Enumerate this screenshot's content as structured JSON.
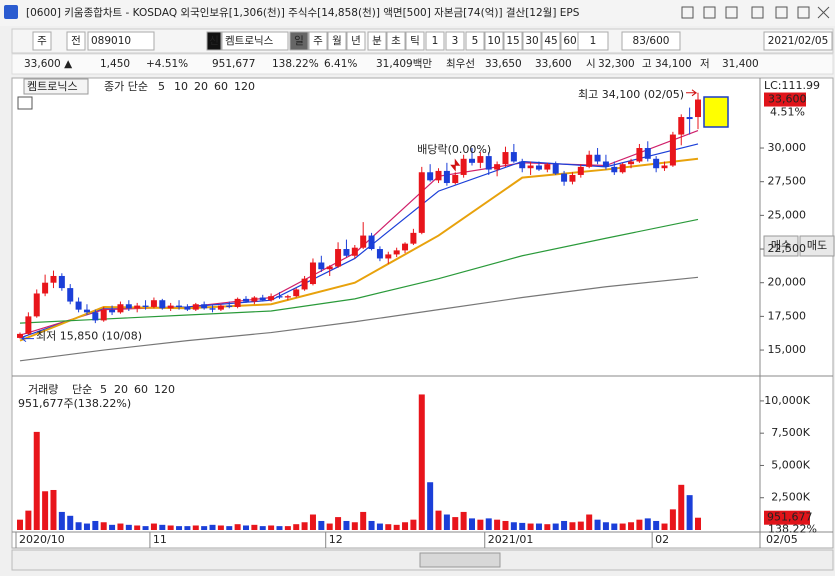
{
  "window": {
    "title": "[0600] 키움종합차트 - KOSDAQ 외국인보유[1,306(천)] 주식수[14,858(천)] 액면[500] 자본금[74(억)] 결산[12월] EPS",
    "toolbar": [
      "주",
      "전",
      "089010",
      "신",
      "켐트로닉스",
      "일",
      "주",
      "월",
      "년",
      "분",
      "초",
      "틱",
      "1",
      "3",
      "5",
      "10",
      "15",
      "30",
      "45",
      "60",
      "1",
      "83/600",
      "2021/02/05"
    ],
    "quote": [
      {
        "text": "33,600 ▲",
        "color": "#e0141a"
      },
      {
        "text": "1,450",
        "color": "#e0141a"
      },
      {
        "text": "+4.51%",
        "color": "#e0141a"
      },
      {
        "text": "951,677",
        "color": "#222222"
      },
      {
        "text": "138.22%",
        "color": "#e0141a"
      },
      {
        "text": "6.41%",
        "color": "#222222"
      },
      {
        "text": "31,409백만",
        "color": "#222222"
      },
      {
        "text": "최우선",
        "color": "#222222"
      },
      {
        "text": "33,650",
        "color": "#e0141a"
      },
      {
        "text": "33,600",
        "color": "#e0141a"
      },
      {
        "text": "시",
        "color": "#222222"
      },
      {
        "text": "32,300",
        "color": "#e0141a"
      },
      {
        "text": "고",
        "color": "#222222"
      },
      {
        "text": "34,100",
        "color": "#e0141a"
      },
      {
        "text": "저",
        "color": "#222222"
      },
      {
        "text": "31,400",
        "color": "#e0141a"
      }
    ],
    "buttons": [
      "매수",
      "매도"
    ]
  },
  "chart_data": [
    {
      "type": "candlestick",
      "title": "켐트로닉스",
      "legend_label": "종가 단순",
      "up_color": "#e8151b",
      "down_color": "#1b3fd8",
      "ohlc": [
        [
          15900,
          16300,
          15850,
          16200
        ],
        [
          16200,
          17800,
          16100,
          17500
        ],
        [
          17500,
          19500,
          17400,
          19200
        ],
        [
          19200,
          20600,
          19000,
          20000
        ],
        [
          20000,
          20900,
          19600,
          20500
        ],
        [
          20500,
          20700,
          19400,
          19600
        ],
        [
          19600,
          19900,
          18400,
          18600
        ],
        [
          18600,
          18900,
          17800,
          18000
        ],
        [
          18000,
          18400,
          17600,
          17800
        ],
        [
          17800,
          18000,
          17000,
          17200
        ],
        [
          17200,
          18200,
          17100,
          18000
        ],
        [
          18000,
          18300,
          17600,
          17800
        ],
        [
          17800,
          18600,
          17700,
          18400
        ],
        [
          18400,
          18700,
          17900,
          18100
        ],
        [
          18100,
          18500,
          17800,
          18300
        ],
        [
          18300,
          18700,
          18000,
          18200
        ],
        [
          18200,
          18900,
          18100,
          18700
        ],
        [
          18700,
          18800,
          18000,
          18100
        ],
        [
          18100,
          18500,
          17900,
          18300
        ],
        [
          18300,
          18700,
          18000,
          18200
        ],
        [
          18200,
          18400,
          17900,
          18000
        ],
        [
          18000,
          18500,
          17900,
          18400
        ],
        [
          18400,
          18600,
          18000,
          18100
        ],
        [
          18100,
          18300,
          17800,
          18000
        ],
        [
          18000,
          18400,
          17900,
          18300
        ],
        [
          18300,
          18600,
          18100,
          18200
        ],
        [
          18200,
          18900,
          18100,
          18800
        ],
        [
          18800,
          19000,
          18500,
          18600
        ],
        [
          18600,
          19000,
          18400,
          18900
        ],
        [
          18900,
          19100,
          18600,
          18700
        ],
        [
          18700,
          19200,
          18600,
          19000
        ],
        [
          19000,
          19300,
          18800,
          18900
        ],
        [
          18900,
          19100,
          18700,
          19000
        ],
        [
          19000,
          19600,
          18900,
          19500
        ],
        [
          19500,
          20500,
          19400,
          20300
        ],
        [
          19900,
          21800,
          19800,
          21500
        ],
        [
          21500,
          22000,
          20800,
          21000
        ],
        [
          21000,
          21300,
          20500,
          21200
        ],
        [
          21200,
          23000,
          21100,
          22500
        ],
        [
          22500,
          23200,
          21900,
          22000
        ],
        [
          22000,
          22800,
          21800,
          22600
        ],
        [
          22600,
          24500,
          22500,
          23500
        ],
        [
          23500,
          23700,
          22400,
          22500
        ],
        [
          22500,
          22700,
          21600,
          21800
        ],
        [
          21800,
          22300,
          21400,
          22100
        ],
        [
          22100,
          22600,
          21900,
          22400
        ],
        [
          22400,
          23000,
          22200,
          22900
        ],
        [
          22900,
          24000,
          22800,
          23700
        ],
        [
          23700,
          28600,
          23600,
          28200
        ],
        [
          28200,
          28800,
          27500,
          27600
        ],
        [
          27600,
          28500,
          27400,
          28300
        ],
        [
          28300,
          28900,
          27200,
          27400
        ],
        [
          27400,
          28200,
          27300,
          28000
        ],
        [
          28000,
          29500,
          27800,
          29200
        ],
        [
          29200,
          30000,
          28700,
          28900
        ],
        [
          28900,
          29700,
          28500,
          29400
        ],
        [
          29400,
          29700,
          28000,
          28400
        ],
        [
          28400,
          29000,
          27900,
          28800
        ],
        [
          28800,
          30100,
          28600,
          29700
        ],
        [
          29700,
          30300,
          28900,
          29000
        ],
        [
          29000,
          29200,
          28200,
          28500
        ],
        [
          28500,
          29000,
          28000,
          28700
        ],
        [
          28700,
          29000,
          28300,
          28400
        ],
        [
          28400,
          28900,
          28200,
          28800
        ],
        [
          28800,
          29000,
          28000,
          28100
        ],
        [
          28100,
          28300,
          27200,
          27500
        ],
        [
          27500,
          28200,
          27300,
          28000
        ],
        [
          28000,
          28800,
          27800,
          28600
        ],
        [
          28600,
          29800,
          28500,
          29500
        ],
        [
          29500,
          30000,
          28800,
          29000
        ],
        [
          29000,
          29500,
          28400,
          28600
        ],
        [
          28600,
          29000,
          28000,
          28200
        ],
        [
          28200,
          28900,
          28100,
          28800
        ],
        [
          28800,
          29200,
          28500,
          29000
        ],
        [
          29000,
          30300,
          28900,
          30000
        ],
        [
          30000,
          30500,
          29000,
          29200
        ],
        [
          29200,
          29400,
          28200,
          28500
        ],
        [
          28500,
          29000,
          28300,
          28700
        ],
        [
          28700,
          31200,
          28600,
          31000
        ],
        [
          31000,
          32500,
          30200,
          32300
        ],
        [
          32300,
          33000,
          31000,
          32150
        ],
        [
          32300,
          34100,
          31400,
          33600
        ]
      ],
      "series": [
        {
          "name": "5",
          "color": "#d0206a",
          "x": [
            0,
            10,
            20,
            30,
            40,
            50,
            60,
            70,
            81
          ],
          "values": [
            16100,
            18000,
            18200,
            18900,
            22200,
            27900,
            28900,
            28700,
            31300
          ]
        },
        {
          "name": "10",
          "color": "#1b3fd8",
          "x": [
            0,
            10,
            20,
            30,
            40,
            50,
            60,
            70,
            81
          ],
          "values": [
            15900,
            18100,
            18200,
            18700,
            21800,
            26800,
            29000,
            28600,
            30300
          ]
        },
        {
          "name": "20",
          "color": "#e8a20c",
          "x": [
            0,
            10,
            20,
            30,
            40,
            50,
            60,
            70,
            81
          ],
          "values": [
            15700,
            18200,
            18100,
            18400,
            20000,
            23500,
            27800,
            28400,
            29200
          ]
        },
        {
          "name": "60",
          "color": "#2a9a3a",
          "x": [
            0,
            10,
            20,
            30,
            40,
            50,
            60,
            70,
            81
          ],
          "values": [
            17000,
            17300,
            17600,
            17900,
            18800,
            20300,
            22000,
            23300,
            24700
          ]
        },
        {
          "name": "120",
          "color": "#777777",
          "x": [
            0,
            10,
            20,
            30,
            40,
            50,
            60,
            70,
            81
          ],
          "values": [
            14200,
            15000,
            15700,
            16300,
            17100,
            18000,
            18900,
            19700,
            20400
          ]
        }
      ],
      "ylim": [
        13370,
        35050
      ],
      "yticks": [
        {
          "value": 15000,
          "label": "15,000"
        },
        {
          "value": 17500,
          "label": "17,500"
        },
        {
          "value": 20000,
          "label": "20,000"
        },
        {
          "value": 22500,
          "label": "22,500"
        },
        {
          "value": 25000,
          "label": "25,000"
        },
        {
          "value": 27500,
          "label": "27,500"
        },
        {
          "value": 30000,
          "label": "30,000"
        }
      ],
      "x_labels": [
        {
          "value": 0,
          "label": "2020/10"
        },
        {
          "value": 16,
          "label": "11"
        },
        {
          "value": 37,
          "label": "12"
        },
        {
          "value": 56,
          "label": "2021/01"
        },
        {
          "value": 76,
          "label": "02"
        }
      ],
      "annotations": [
        {
          "text": "최고 34,100 (02/05)",
          "x": 81,
          "value": 34100
        },
        {
          "text": "최저 15,850 (10/08)",
          "x": 0,
          "value": 15850
        },
        {
          "text": "배당락(0.00%)",
          "x": 52,
          "value": 28200
        }
      ],
      "last_price": {
        "value": 33600,
        "label": "33,600"
      },
      "change_label": "4.51%",
      "lc_label": "LC:111.99",
      "end_date": "02/05"
    },
    {
      "type": "bar",
      "title": "거래량",
      "legend_label": "단순",
      "unit_note": "951,677주(138.22%)",
      "ma_names": [
        "5",
        "20",
        "60",
        "120"
      ],
      "ma_colors": [
        "#c020a0",
        "#e8a20c",
        "#2a9a3a",
        "#777777"
      ],
      "values": [
        800,
        1500,
        7600,
        3000,
        3100,
        1400,
        1100,
        600,
        500,
        700,
        600,
        400,
        500,
        400,
        350,
        300,
        500,
        400,
        350,
        300,
        300,
        350,
        300,
        400,
        350,
        300,
        450,
        350,
        400,
        300,
        350,
        300,
        300,
        450,
        600,
        1200,
        700,
        500,
        1000,
        700,
        600,
        1400,
        700,
        500,
        450,
        400,
        600,
        800,
        10500,
        3700,
        1500,
        1200,
        1000,
        1400,
        900,
        800,
        900,
        800,
        700,
        600,
        550,
        500,
        500,
        450,
        500,
        700,
        600,
        650,
        1200,
        800,
        600,
        500,
        500,
        600,
        800,
        900,
        700,
        500,
        1600,
        3500,
        2700,
        951.677
      ],
      "ylim": [
        0,
        11000
      ],
      "yticks": [
        {
          "value": 2500,
          "label": "2,500K"
        },
        {
          "value": 5000,
          "label": "5,000K"
        },
        {
          "value": 7500,
          "label": "7,500K"
        },
        {
          "value": 10000,
          "label": "10,000K"
        }
      ],
      "last_value": {
        "value": 951.677,
        "label": "951,677"
      },
      "last_ratio": "138.22%"
    }
  ]
}
